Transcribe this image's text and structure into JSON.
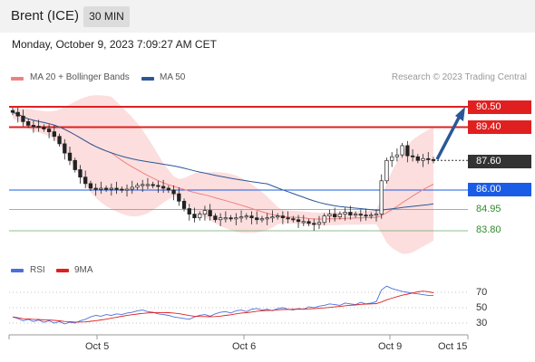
{
  "header": {
    "title": "Brent (ICE)",
    "timeframe": "30 MIN"
  },
  "datetime": "Monday, October 9, 2023 7:09:27 AM CET",
  "legend": {
    "items": [
      {
        "label": "MA 20 + Bollinger Bands",
        "color": "#f08080"
      },
      {
        "label": "MA 50",
        "color": "#2b5797"
      }
    ],
    "credit": "Research © 2023 Trading Central"
  },
  "price_levels": [
    {
      "value": "90.50",
      "color": "#e02020",
      "style": "filled"
    },
    {
      "value": "89.40",
      "color": "#e02020",
      "style": "filled"
    },
    {
      "value": "87.60",
      "color": "#333333",
      "style": "filled"
    },
    {
      "value": "86.00",
      "color": "#1a5ce6",
      "style": "filled"
    },
    {
      "value": "84.95",
      "color": "#2e8b2e",
      "style": "text"
    },
    {
      "value": "83.80",
      "color": "#2e8b2e",
      "style": "text"
    }
  ],
  "rsi_legend": [
    {
      "label": "RSI",
      "color": "#4a6fdc"
    },
    {
      "label": "9MA",
      "color": "#e02020"
    }
  ],
  "rsi_levels": [
    "70",
    "50",
    "30"
  ],
  "x_axis": [
    "Oct 5",
    "Oct 6",
    "Oct 9",
    "Oct 15"
  ],
  "chart_data": {
    "type": "candlestick",
    "title": "Brent (ICE)",
    "interval": "30 MIN",
    "ylim": [
      82.5,
      91.3
    ],
    "close": [
      90.2,
      90.0,
      89.7,
      89.5,
      89.45,
      89.4,
      89.3,
      89.15,
      88.9,
      88.5,
      88.0,
      87.6,
      87.1,
      86.7,
      86.35,
      86.1,
      86.05,
      86.1,
      86.05,
      86.1,
      86.05,
      86.0,
      86.05,
      86.15,
      86.25,
      86.3,
      86.3,
      86.25,
      86.2,
      86.1,
      86.0,
      85.8,
      85.4,
      85.0,
      84.7,
      84.5,
      84.7,
      84.9,
      84.6,
      84.4,
      84.5,
      84.5,
      84.45,
      84.5,
      84.55,
      84.6,
      84.5,
      84.4,
      84.45,
      84.5,
      84.55,
      84.6,
      84.5,
      84.45,
      84.4,
      84.3,
      84.3,
      84.2,
      84.15,
      84.25,
      84.6,
      84.7,
      84.55,
      84.7,
      84.8,
      84.65,
      84.7,
      84.65,
      84.6,
      84.65,
      84.7,
      86.5,
      87.6,
      87.8,
      87.9,
      88.4,
      87.85,
      87.8,
      87.6,
      87.7,
      87.65,
      87.6
    ],
    "reference_levels": {
      "resistance": [
        90.5,
        89.4
      ],
      "last": 87.6,
      "pivot": 86.0,
      "support": [
        84.95,
        83.8
      ]
    },
    "indicators": [
      "MA 20 + Bollinger Bands",
      "MA 50"
    ],
    "rsi": {
      "levels": [
        70,
        50,
        30
      ],
      "values": [
        38,
        36,
        33,
        35,
        32,
        34,
        31,
        33,
        30,
        32,
        29,
        31,
        30,
        33,
        35,
        38,
        40,
        39,
        41,
        40,
        42,
        41,
        43,
        44,
        46,
        47,
        45,
        44,
        42,
        41,
        40,
        38,
        37,
        36,
        35,
        38,
        40,
        41,
        39,
        42,
        44,
        45,
        43,
        46,
        47,
        45,
        48,
        49,
        47,
        48,
        46,
        49,
        50,
        48,
        47,
        49,
        48,
        51,
        50,
        52,
        53,
        55,
        54,
        53,
        56,
        55,
        54,
        57,
        55,
        56,
        58,
        73,
        78,
        75,
        73,
        71,
        70,
        69,
        68,
        67,
        66,
        66
      ]
    },
    "x_ticks": [
      "Oct 5",
      "Oct 6",
      "Oct 9",
      "Oct 15"
    ]
  }
}
